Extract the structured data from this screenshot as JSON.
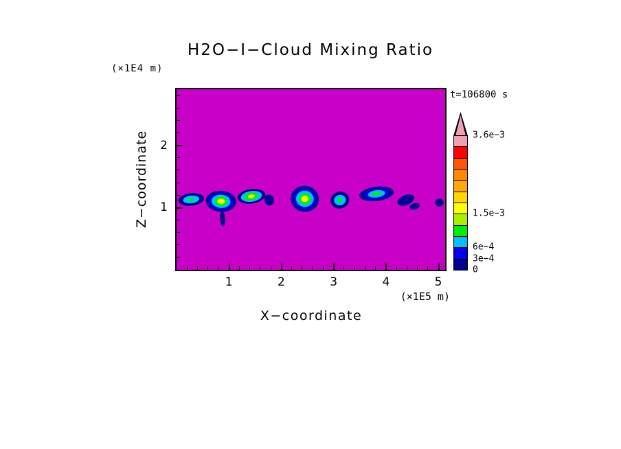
{
  "title": "H2O−I−Cloud Mixing Ratio",
  "time_label": "t=106800 s",
  "x_axis": {
    "label": "X−coordinate",
    "unit": "(×1E5 m)",
    "ticks": [
      "1",
      "2",
      "3",
      "4",
      "5"
    ]
  },
  "y_axis": {
    "label": "Z−coordinate",
    "unit": "(×1E4 m)",
    "ticks": [
      "1",
      "2"
    ]
  },
  "colorbar": {
    "labels": [
      {
        "value": 0,
        "text": "0"
      },
      {
        "value": 0.0003,
        "text": "3e−4"
      },
      {
        "value": 0.0006,
        "text": "6e−4"
      },
      {
        "value": 0.0015,
        "text": "1.5e−3"
      },
      {
        "value": 0.0036,
        "text": "3.6e−3"
      }
    ]
  },
  "chart_data": {
    "type": "heatmap",
    "title": "H2O−I−Cloud Mixing Ratio",
    "time_label": "t=106800 s",
    "time_seconds": 106800,
    "xlabel": "X−coordinate",
    "x_unit": "×1E5 m",
    "ylabel": "Z−coordinate",
    "y_unit": "×1E4 m",
    "xlim": [
      0,
      5.13
    ],
    "ylim": [
      0,
      2.9
    ],
    "x_ticks": [
      1,
      2,
      3,
      4,
      5
    ],
    "y_ticks": [
      1,
      2
    ],
    "minor_tick_step": 0.2,
    "background_value": 0,
    "background_color": "#C800C8",
    "levels": [
      0,
      0.0003,
      0.0006,
      0.0009,
      0.0012,
      0.0015,
      0.0018,
      0.0021,
      0.0024,
      0.0027,
      0.003,
      0.0033,
      0.0036
    ],
    "level_colors": [
      "#00008B",
      "#0000EE",
      "#00BFFF",
      "#00EE00",
      "#AAEE00",
      "#FFFF00",
      "#FFD400",
      "#FFAA00",
      "#FF8800",
      "#FF5500",
      "#FF0000",
      "#F0A0B4"
    ],
    "overflow_color": "#F0A0B4",
    "clouds": [
      {
        "x": 0.28,
        "z": 1.13,
        "w": 0.5,
        "h": 0.2,
        "rot": -6,
        "layers": [
          "#00008B",
          "#00BFFF",
          "#00EE00"
        ]
      },
      {
        "x": 0.85,
        "z": 1.1,
        "w": 0.58,
        "h": 0.34,
        "rot": 4,
        "layers": [
          "#00008B",
          "#0000EE",
          "#00BFFF",
          "#00EE00",
          "#FFFF00"
        ]
      },
      {
        "x": 0.88,
        "z": 0.82,
        "w": 0.1,
        "h": 0.24,
        "rot": -5,
        "layers": [
          "#00008B"
        ]
      },
      {
        "x": 1.43,
        "z": 1.18,
        "w": 0.54,
        "h": 0.23,
        "rot": -8,
        "layers": [
          "#00008B",
          "#00BFFF",
          "#00EE00",
          "#FFFF00"
        ]
      },
      {
        "x": 1.77,
        "z": 1.12,
        "w": 0.18,
        "h": 0.18,
        "rot": -15,
        "layers": [
          "#00008B",
          "#0000EE"
        ]
      },
      {
        "x": 2.45,
        "z": 1.14,
        "w": 0.54,
        "h": 0.42,
        "rot": 6,
        "layers": [
          "#00008B",
          "#0000EE",
          "#00BFFF",
          "#00EE00",
          "#FFFF00"
        ]
      },
      {
        "x": 3.12,
        "z": 1.12,
        "w": 0.36,
        "h": 0.27,
        "rot": -12,
        "layers": [
          "#00008B",
          "#00BFFF",
          "#00EE00"
        ]
      },
      {
        "x": 3.82,
        "z": 1.22,
        "w": 0.66,
        "h": 0.23,
        "rot": -7,
        "layers": [
          "#00008B",
          "#0000EE",
          "#00BFFF",
          "#00EE00"
        ]
      },
      {
        "x": 4.38,
        "z": 1.12,
        "w": 0.34,
        "h": 0.16,
        "rot": -22,
        "layers": [
          "#00008B",
          "#0000EE"
        ]
      },
      {
        "x": 4.55,
        "z": 1.02,
        "w": 0.2,
        "h": 0.1,
        "rot": -18,
        "layers": [
          "#00008B"
        ]
      },
      {
        "x": 5.02,
        "z": 1.08,
        "w": 0.16,
        "h": 0.13,
        "rot": -10,
        "layers": [
          "#00008B"
        ]
      }
    ]
  }
}
